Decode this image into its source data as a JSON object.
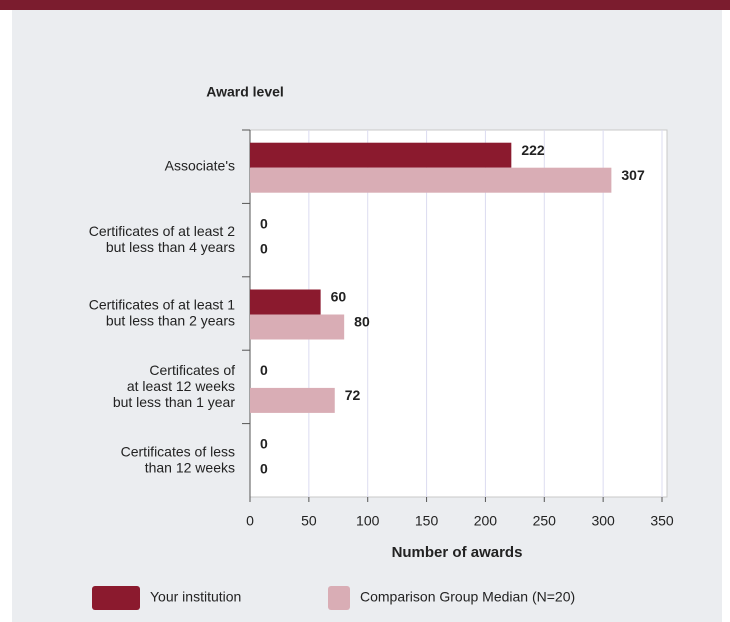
{
  "chart_data": {
    "type": "bar",
    "orientation": "horizontal",
    "y_axis_label": "Award level",
    "x_axis_label": "Number of awards",
    "categories": [
      "Associate's",
      "Certificates of at least 2\nbut less than 4 years",
      "Certificates of at least 1\nbut  less than 2 years",
      "Certificates of\nat least 12 weeks\nbut less than 1 year",
      "Certificates of less\nthan 12 weeks"
    ],
    "series": [
      {
        "name": "Your institution",
        "color": "#8b1a2e",
        "values": [
          222,
          0,
          60,
          0,
          0
        ]
      },
      {
        "name": "Comparison Group Median (N=20)",
        "color": "#d9adb5",
        "values": [
          307,
          0,
          80,
          72,
          0
        ]
      }
    ],
    "xlim": [
      0,
      350
    ],
    "xticks": [
      0,
      50,
      100,
      150,
      200,
      250,
      300,
      350
    ],
    "grid": true
  }
}
